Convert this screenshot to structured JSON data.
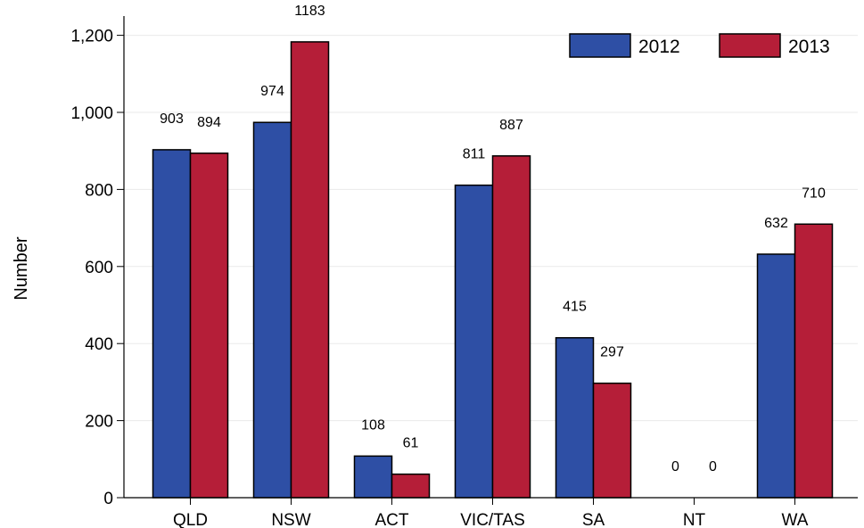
{
  "chart_data": {
    "type": "bar",
    "title": "",
    "xlabel": "",
    "ylabel": "Number",
    "categories": [
      "QLD",
      "NSW",
      "ACT",
      "VIC/TAS",
      "SA",
      "NT",
      "WA"
    ],
    "series": [
      {
        "name": "2012",
        "color": "#2e4fa5",
        "values": [
          903,
          974,
          108,
          811,
          415,
          0,
          632
        ]
      },
      {
        "name": "2013",
        "color": "#b51e38",
        "values": [
          894,
          1183,
          61,
          887,
          297,
          0,
          710
        ]
      }
    ],
    "data_labels": [
      [
        "903",
        "974",
        "108",
        "811",
        "415",
        "0",
        "632"
      ],
      [
        "894",
        "1183",
        "61",
        "887",
        "297",
        "0",
        "710"
      ]
    ],
    "ylim": [
      0,
      1250
    ],
    "yticks": [
      0,
      200,
      400,
      600,
      800,
      1000,
      1200
    ],
    "ytick_labels": [
      "0",
      "200",
      "400",
      "600",
      "800",
      "1,000",
      "1,200"
    ],
    "grid": true,
    "legend_position": "top-right"
  }
}
